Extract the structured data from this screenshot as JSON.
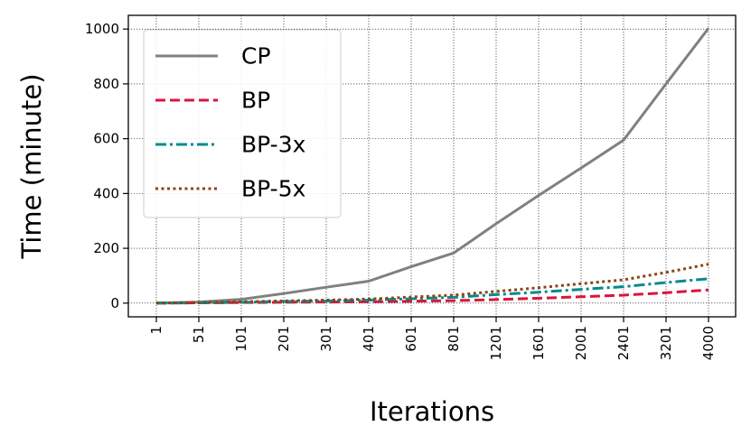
{
  "chart_data": {
    "type": "line",
    "xlabel": "Iterations",
    "ylabel": "Time (minute)",
    "categories": [
      "1",
      "51",
      "101",
      "201",
      "301",
      "401",
      "601",
      "801",
      "1201",
      "1601",
      "2001",
      "2401",
      "3201",
      "4000"
    ],
    "ylim": [
      -50,
      1050
    ],
    "yticks": [
      0,
      200,
      400,
      600,
      800,
      1000
    ],
    "grid": true,
    "legend_position": "top-left",
    "series": [
      {
        "name": "CP",
        "color": "#808080",
        "style": "solid",
        "values": [
          0,
          4,
          14,
          35,
          58,
          80,
          133,
          183,
          290,
          393,
          493,
          595,
          800,
          1003
        ]
      },
      {
        "name": "BP",
        "color": "#dc143c",
        "style": "dashed",
        "values": [
          0,
          1,
          2,
          3,
          4,
          5,
          7,
          9,
          13,
          18,
          23,
          29,
          38,
          48
        ]
      },
      {
        "name": "BP-3x",
        "color": "#008b8b",
        "style": "dashdot",
        "values": [
          0,
          1,
          3,
          6,
          8,
          11,
          16,
          21,
          31,
          40,
          50,
          60,
          75,
          89
        ]
      },
      {
        "name": "BP-5x",
        "color": "#8b4513",
        "style": "dotted",
        "values": [
          0,
          2,
          5,
          8,
          11,
          15,
          22,
          29,
          43,
          56,
          71,
          85,
          112,
          142
        ]
      }
    ]
  }
}
